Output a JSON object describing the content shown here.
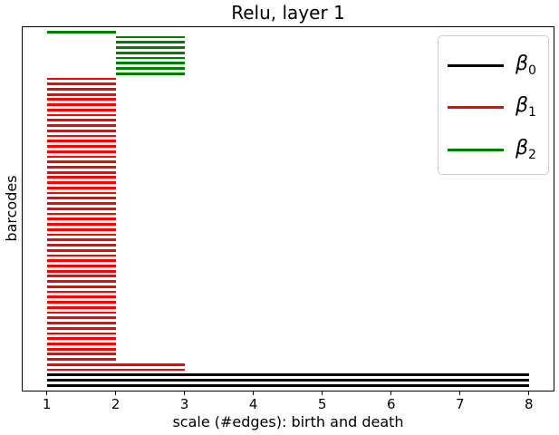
{
  "chart_data": {
    "type": "line",
    "variant": "persistence_barcode_horizontal_segments",
    "title": "Relu, layer 1",
    "xlabel": "scale (#edges): birth and death",
    "ylabel": "barcodes",
    "xlim": [
      0.65,
      8.35
    ],
    "x_ticks": [
      1,
      2,
      3,
      4,
      5,
      6,
      7,
      8
    ],
    "y_ticks": [],
    "grid": false,
    "legend_position": "upper right",
    "series": [
      {
        "name": "beta0",
        "label": "β₀",
        "color": "#000000",
        "bar_count": 3
      },
      {
        "name": "beta1",
        "label": "β₁",
        "color": "#ff0000",
        "bar_count": 57
      },
      {
        "name": "beta2",
        "label": "β₂",
        "color": "#008000",
        "bar_count": 9
      }
    ],
    "bars_top_to_bottom": [
      {
        "series": "beta2",
        "color": "#008000",
        "birth": 1,
        "death": 2,
        "count": 1
      },
      {
        "series": "beta2",
        "color": "#008000",
        "birth": 2,
        "death": 3,
        "count": 8
      },
      {
        "series": "beta1",
        "color": "#ff0000",
        "birth": 1,
        "death": 2,
        "count": 55
      },
      {
        "series": "beta1",
        "color": "#ff0000",
        "birth": 1,
        "death": 3,
        "count": 2
      },
      {
        "series": "beta0",
        "color": "#000000",
        "birth": 1,
        "death": 8,
        "count": 3
      }
    ]
  },
  "legend": {
    "entries": [
      {
        "symbol": "β",
        "subscript": "0",
        "line_color": "#000000"
      },
      {
        "symbol": "β",
        "subscript": "1",
        "line_color": "#ff0000"
      },
      {
        "symbol": "β",
        "subscript": "2",
        "line_color": "#008000"
      }
    ]
  }
}
